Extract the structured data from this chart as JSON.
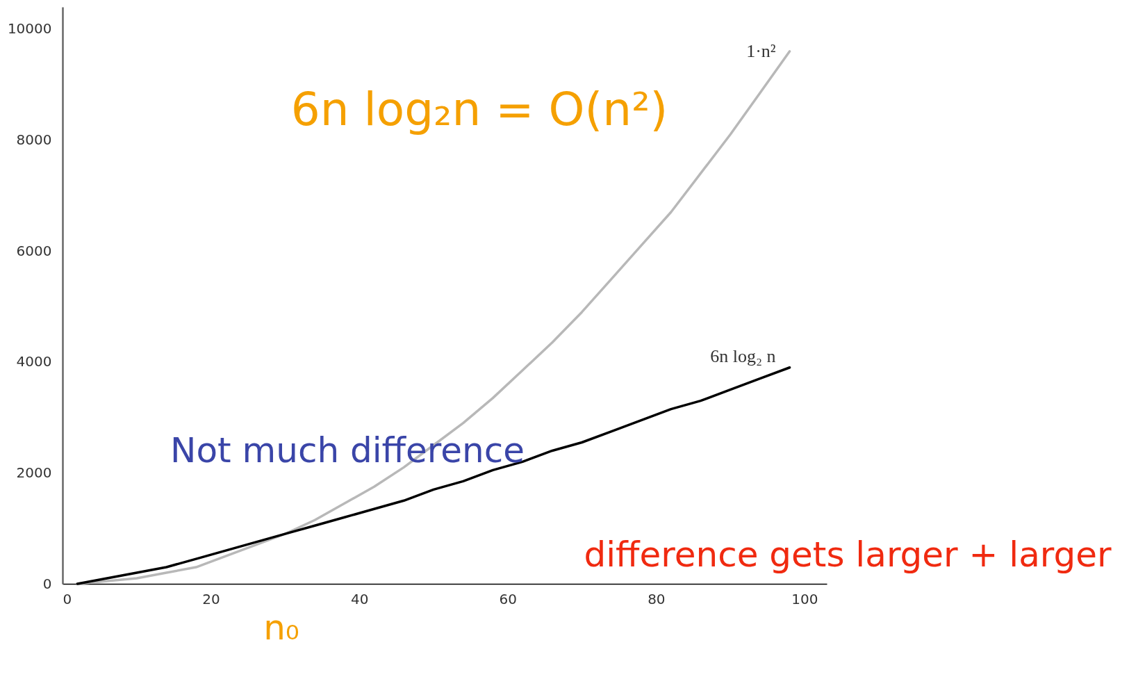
{
  "chart_data": {
    "type": "line",
    "x": [
      2,
      6,
      10,
      14,
      18,
      22,
      26,
      30,
      34,
      38,
      42,
      46,
      50,
      54,
      58,
      62,
      66,
      70,
      74,
      78,
      82,
      86,
      90,
      94,
      98
    ],
    "series": [
      {
        "name": "1·n²",
        "color": "#b8b8b8",
        "values": [
          0,
          50,
          100,
          200,
          300,
          500,
          700,
          900,
          1150,
          1450,
          1750,
          2100,
          2500,
          2900,
          3350,
          3850,
          4350,
          4900,
          5500,
          6100,
          6700,
          7400,
          8100,
          8850,
          9600
        ]
      },
      {
        "name": "6n log₂ n",
        "color": "#000000",
        "values": [
          0,
          100,
          200,
          300,
          450,
          600,
          750,
          900,
          1050,
          1200,
          1350,
          1500,
          1700,
          1850,
          2050,
          2200,
          2400,
          2550,
          2750,
          2950,
          3150,
          3300,
          3500,
          3700,
          3900
        ]
      }
    ],
    "xlim": [
      0,
      103
    ],
    "ylim": [
      0,
      10400
    ],
    "xticks": [
      0,
      20,
      40,
      60,
      80,
      100
    ],
    "yticks": [
      0,
      2000,
      4000,
      6000,
      8000,
      10000
    ],
    "grid": false,
    "legend": false,
    "annotations": [
      "6n log₂n = O(n²)",
      "Not much difference",
      "difference gets larger + larger",
      "n₀"
    ]
  }
}
